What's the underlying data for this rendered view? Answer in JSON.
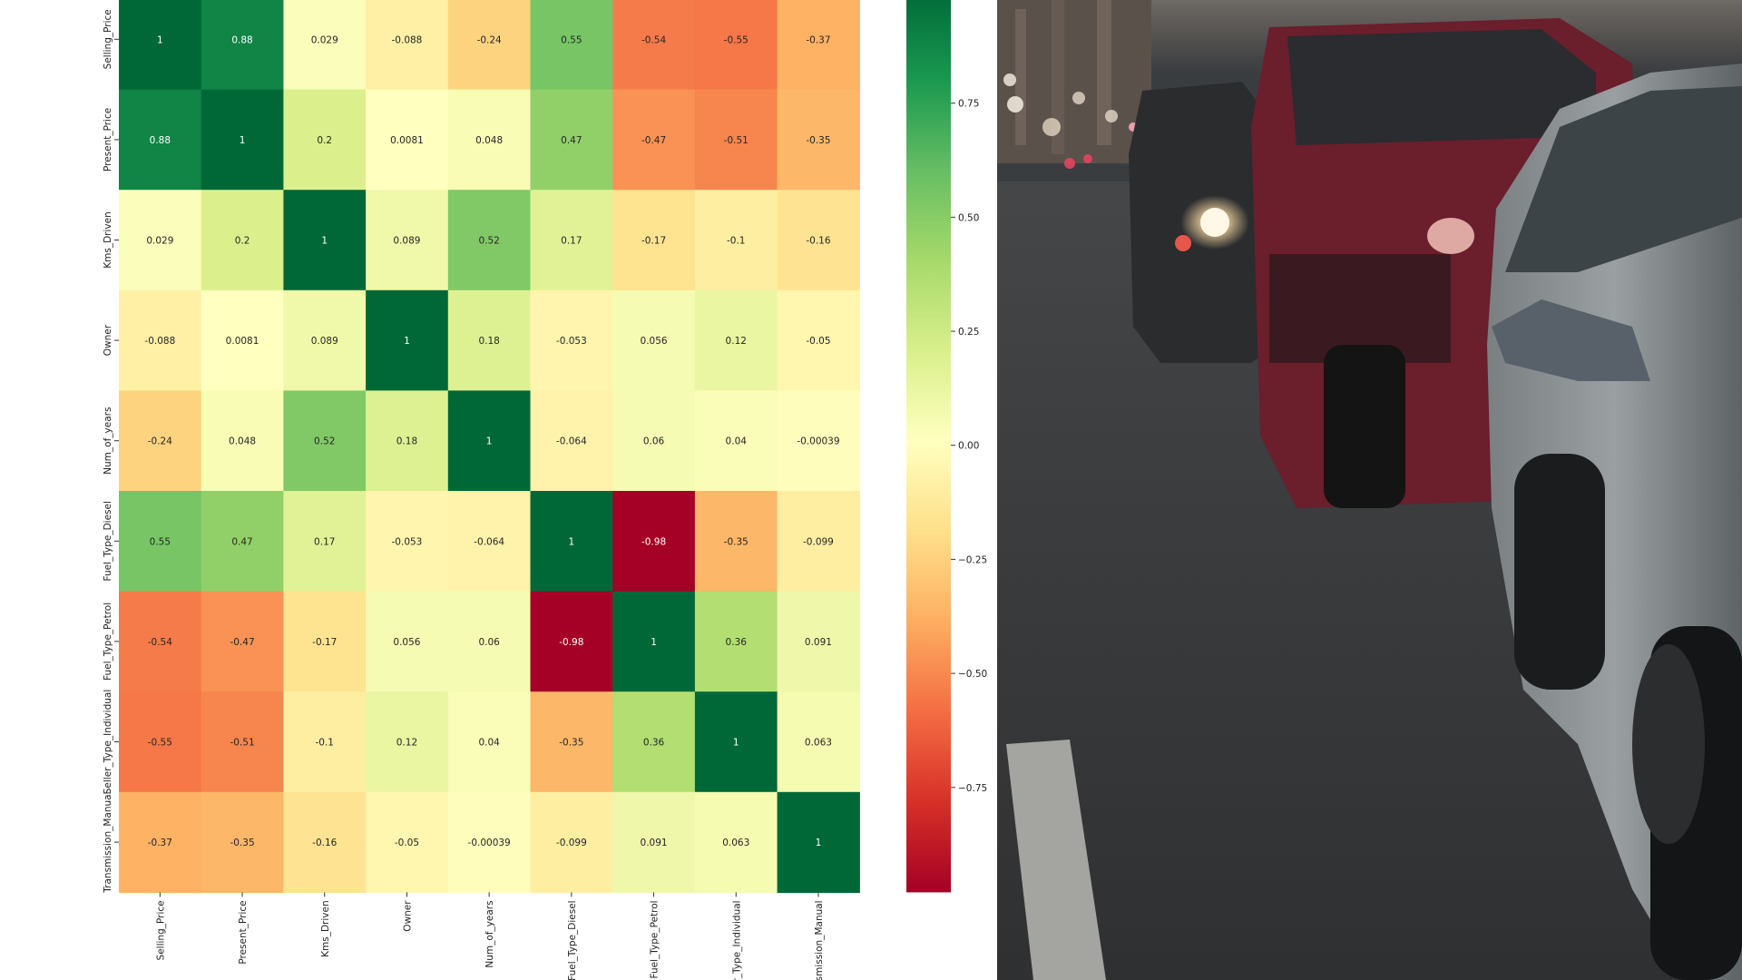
{
  "chart_data": {
    "type": "heatmap",
    "title": "",
    "variables": [
      "Selling_Price",
      "Present_Price",
      "Kms_Driven",
      "Owner",
      "Num_of_years",
      "Fuel_Type_Diesel",
      "Fuel_Type_Petrol",
      "Seller_Type_Individual",
      "Transmission_Manual"
    ],
    "matrix": [
      [
        1,
        0.88,
        0.029,
        -0.088,
        -0.24,
        0.55,
        -0.54,
        -0.55,
        -0.37
      ],
      [
        0.88,
        1,
        0.2,
        0.0081,
        0.048,
        0.47,
        -0.47,
        -0.51,
        -0.35
      ],
      [
        0.029,
        0.2,
        1,
        0.089,
        0.52,
        0.17,
        -0.17,
        -0.1,
        -0.16
      ],
      [
        -0.088,
        0.0081,
        0.089,
        1,
        0.18,
        -0.053,
        0.056,
        0.12,
        -0.05
      ],
      [
        -0.24,
        0.048,
        0.52,
        0.18,
        1,
        -0.064,
        0.06,
        0.04,
        -0.00039
      ],
      [
        0.55,
        0.47,
        0.17,
        -0.053,
        -0.064,
        1,
        -0.98,
        -0.35,
        -0.099
      ],
      [
        -0.54,
        -0.47,
        -0.17,
        0.056,
        0.06,
        -0.98,
        1,
        0.36,
        0.091
      ],
      [
        -0.55,
        -0.51,
        -0.1,
        0.12,
        0.04,
        -0.35,
        0.36,
        1,
        0.063
      ],
      [
        -0.37,
        -0.35,
        -0.16,
        -0.05,
        -0.00039,
        -0.099,
        0.091,
        0.063,
        1
      ]
    ],
    "cell_labels": [
      [
        "1",
        "0.88",
        "0.029",
        "-0.088",
        "-0.24",
        "0.55",
        "-0.54",
        "-0.55",
        "-0.37"
      ],
      [
        "0.88",
        "1",
        "0.2",
        "0.0081",
        "0.048",
        "0.47",
        "-0.47",
        "-0.51",
        "-0.35"
      ],
      [
        "0.029",
        "0.2",
        "1",
        "0.089",
        "0.52",
        "0.17",
        "-0.17",
        "-0.1",
        "-0.16"
      ],
      [
        "-0.088",
        "0.0081",
        "0.089",
        "1",
        "0.18",
        "-0.053",
        "0.056",
        "0.12",
        "-0.05"
      ],
      [
        "-0.24",
        "0.048",
        "0.52",
        "0.18",
        "1",
        "-0.064",
        "0.06",
        "0.04",
        "-0.00039"
      ],
      [
        "0.55",
        "0.47",
        "0.17",
        "-0.053",
        "-0.064",
        "1",
        "-0.98",
        "-0.35",
        "-0.099"
      ],
      [
        "-0.54",
        "-0.47",
        "-0.17",
        "0.056",
        "0.06",
        "-0.98",
        "1",
        "0.36",
        "0.091"
      ],
      [
        "-0.55",
        "-0.51",
        "-0.1",
        "0.12",
        "0.04",
        "-0.35",
        "0.36",
        "1",
        "0.063"
      ],
      [
        "-0.37",
        "-0.35",
        "-0.16",
        "-0.05",
        "-0.00039",
        "-0.099",
        "0.091",
        "0.063",
        "1"
      ]
    ],
    "colormap": "RdYlGn",
    "colorbar": {
      "range": [
        -0.98,
        1
      ],
      "ticks": [
        0.75,
        0.5,
        0.25,
        0.0,
        -0.25,
        -0.5,
        -0.75
      ],
      "tick_labels": [
        "0.75",
        "0.50",
        "0.25",
        "0.00",
        "−0.25",
        "−0.50",
        "−0.75"
      ]
    }
  },
  "photo": {
    "subject": "street-traffic-cars-photo"
  }
}
